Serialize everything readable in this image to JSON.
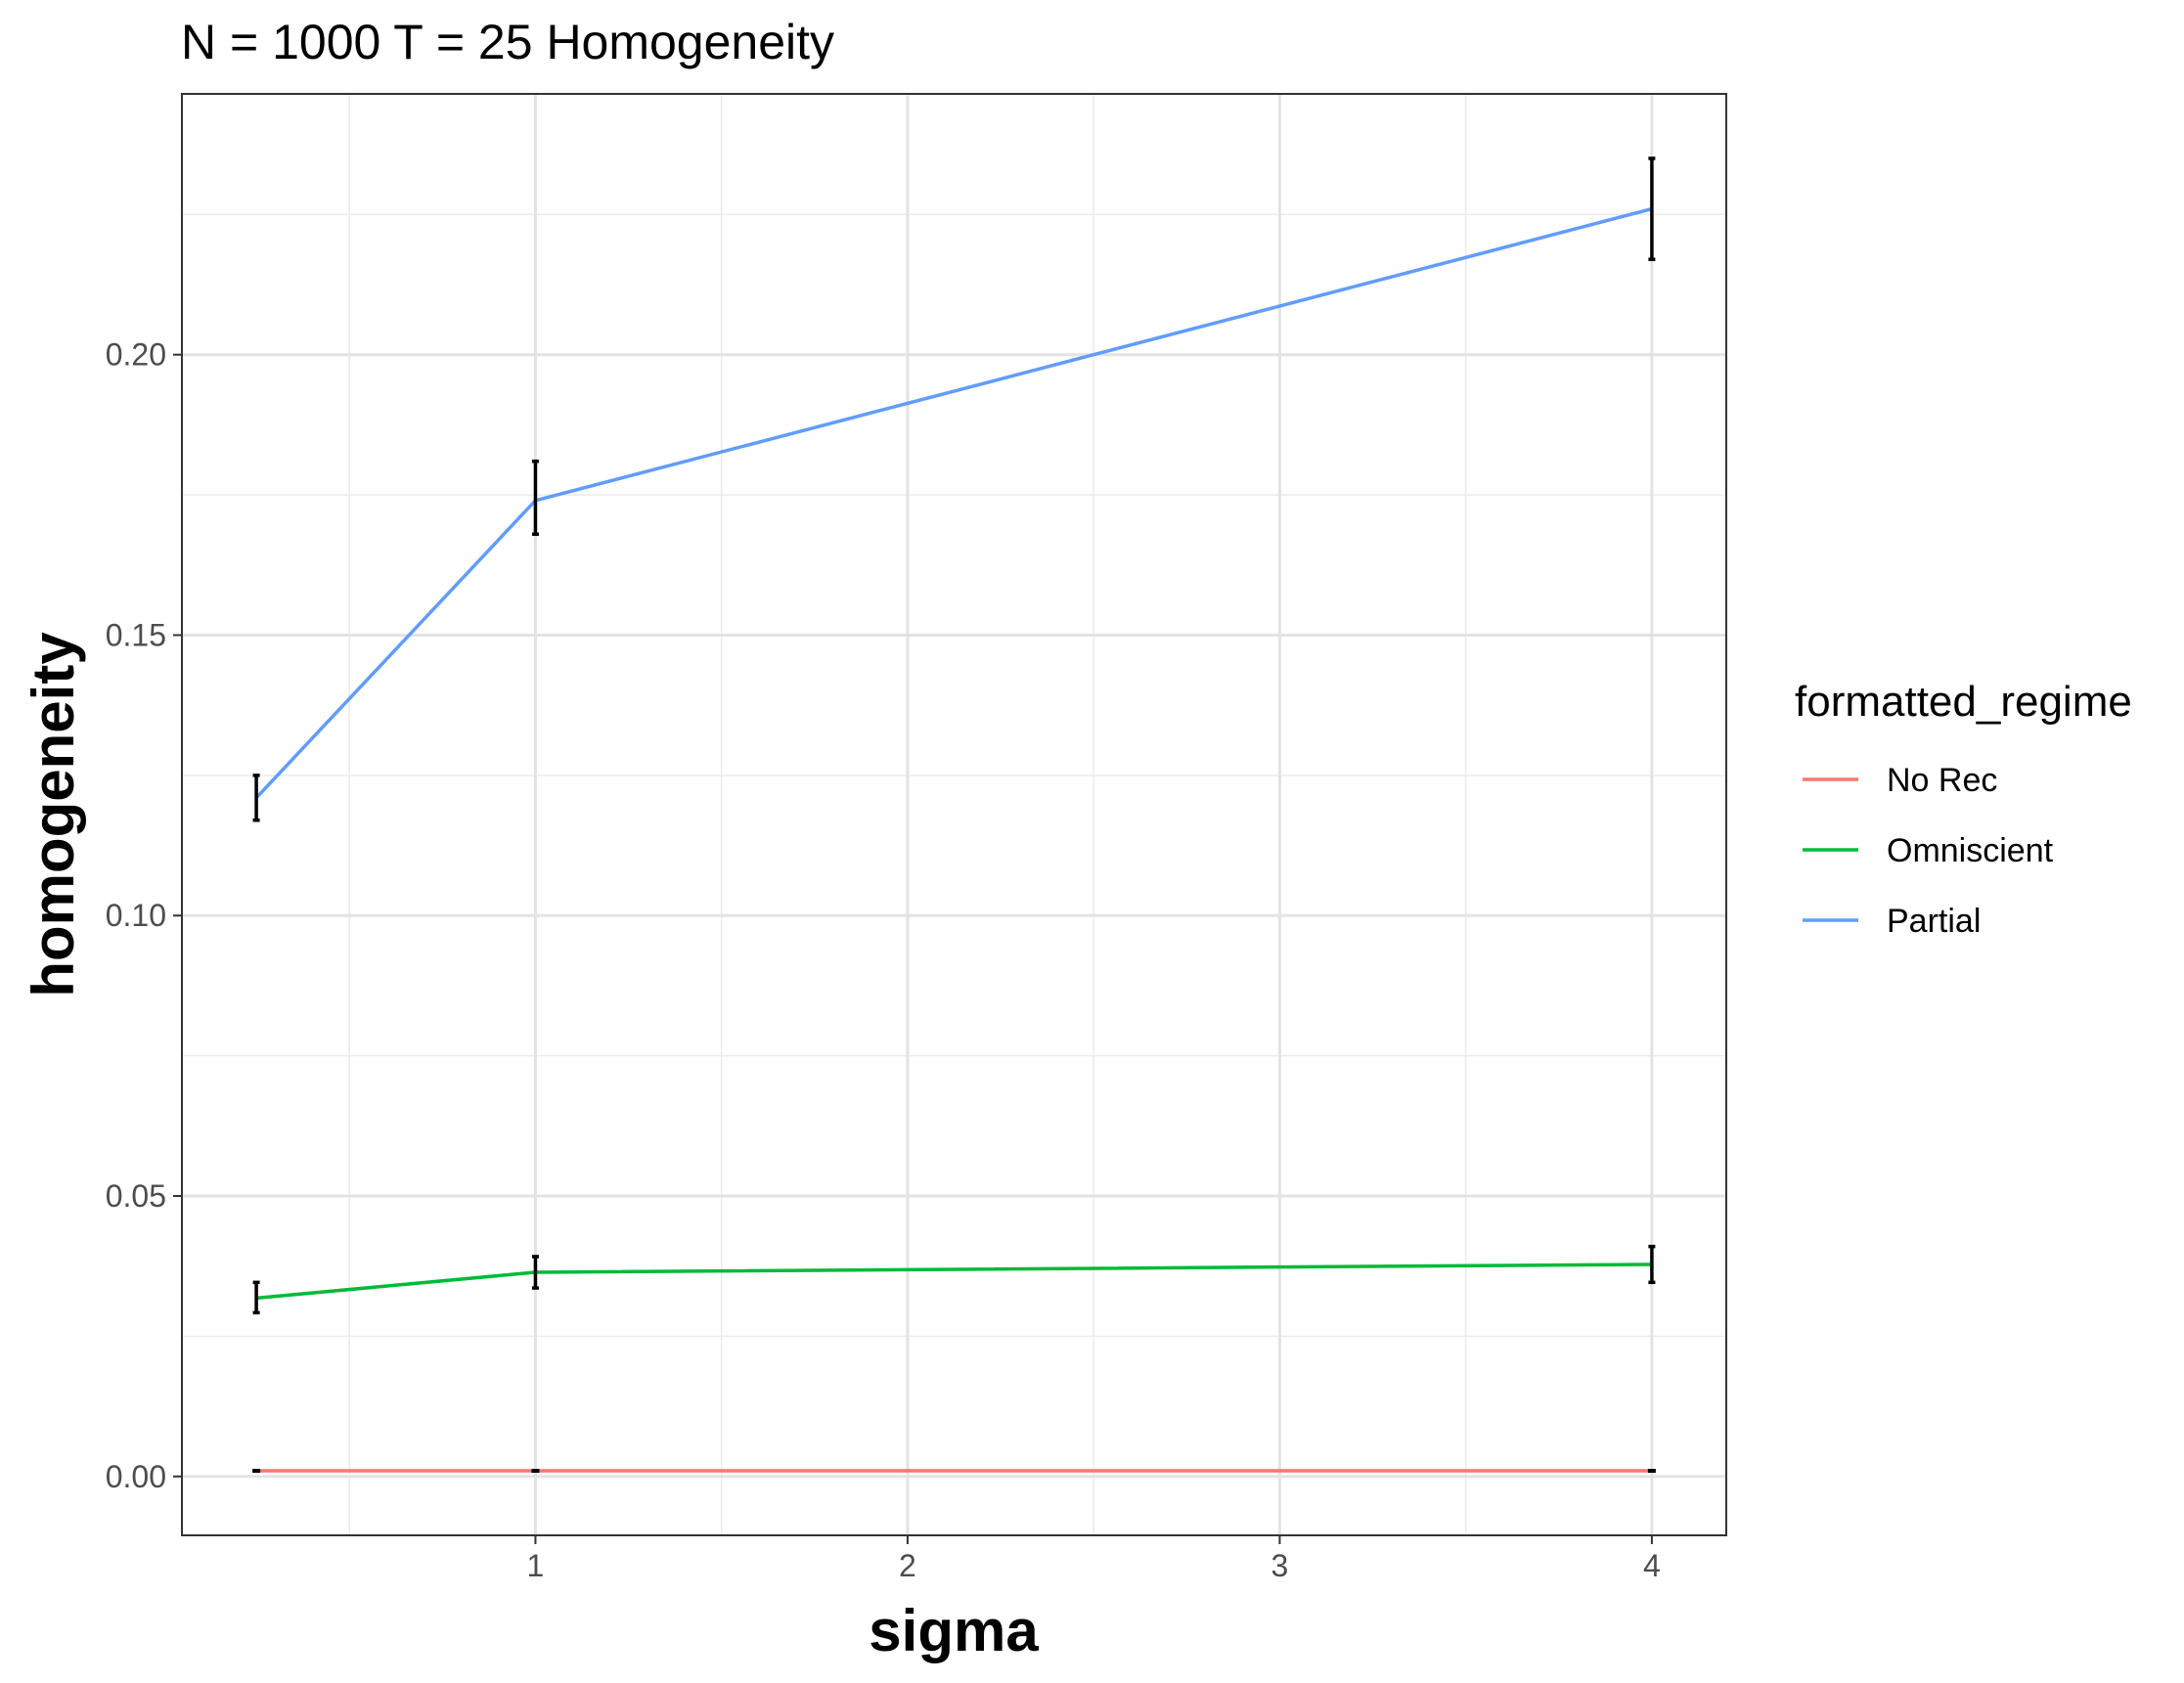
{
  "chart_data": {
    "type": "line",
    "title": "N = 1000 T = 25 Homogeneity",
    "xlabel": "sigma",
    "ylabel": "homogeneity",
    "xlim": [
      0.05,
      4.2
    ],
    "ylim": [
      -0.0105,
      0.2465
    ],
    "x_ticks": [
      1,
      2,
      3,
      4
    ],
    "x_tick_labels": [
      "1",
      "2",
      "3",
      "4"
    ],
    "y_ticks": [
      0.0,
      0.05,
      0.1,
      0.15,
      0.2
    ],
    "y_tick_labels": [
      "0.00",
      "0.05",
      "0.10",
      "0.15",
      "0.20"
    ],
    "grid": true,
    "legend": {
      "title": "formatted_regime",
      "position": "right"
    },
    "x": [
      0.25,
      1,
      4
    ],
    "series": [
      {
        "name": "No Rec",
        "color": "#F8766D",
        "values": [
          0.001,
          0.001,
          0.001
        ],
        "error_low": [
          0.001,
          0.001,
          0.001
        ],
        "error_high": [
          0.001,
          0.001,
          0.001
        ]
      },
      {
        "name": "Omniscient",
        "color": "#00BA38",
        "values": [
          0.0318,
          0.0364,
          0.0378
        ],
        "error_low": [
          0.0292,
          0.0336,
          0.0346
        ],
        "error_high": [
          0.0346,
          0.0392,
          0.041
        ]
      },
      {
        "name": "Partial",
        "color": "#619CFF",
        "values": [
          0.121,
          0.174,
          0.226
        ],
        "error_low": [
          0.117,
          0.168,
          0.217
        ],
        "error_high": [
          0.125,
          0.181,
          0.235
        ]
      }
    ]
  }
}
